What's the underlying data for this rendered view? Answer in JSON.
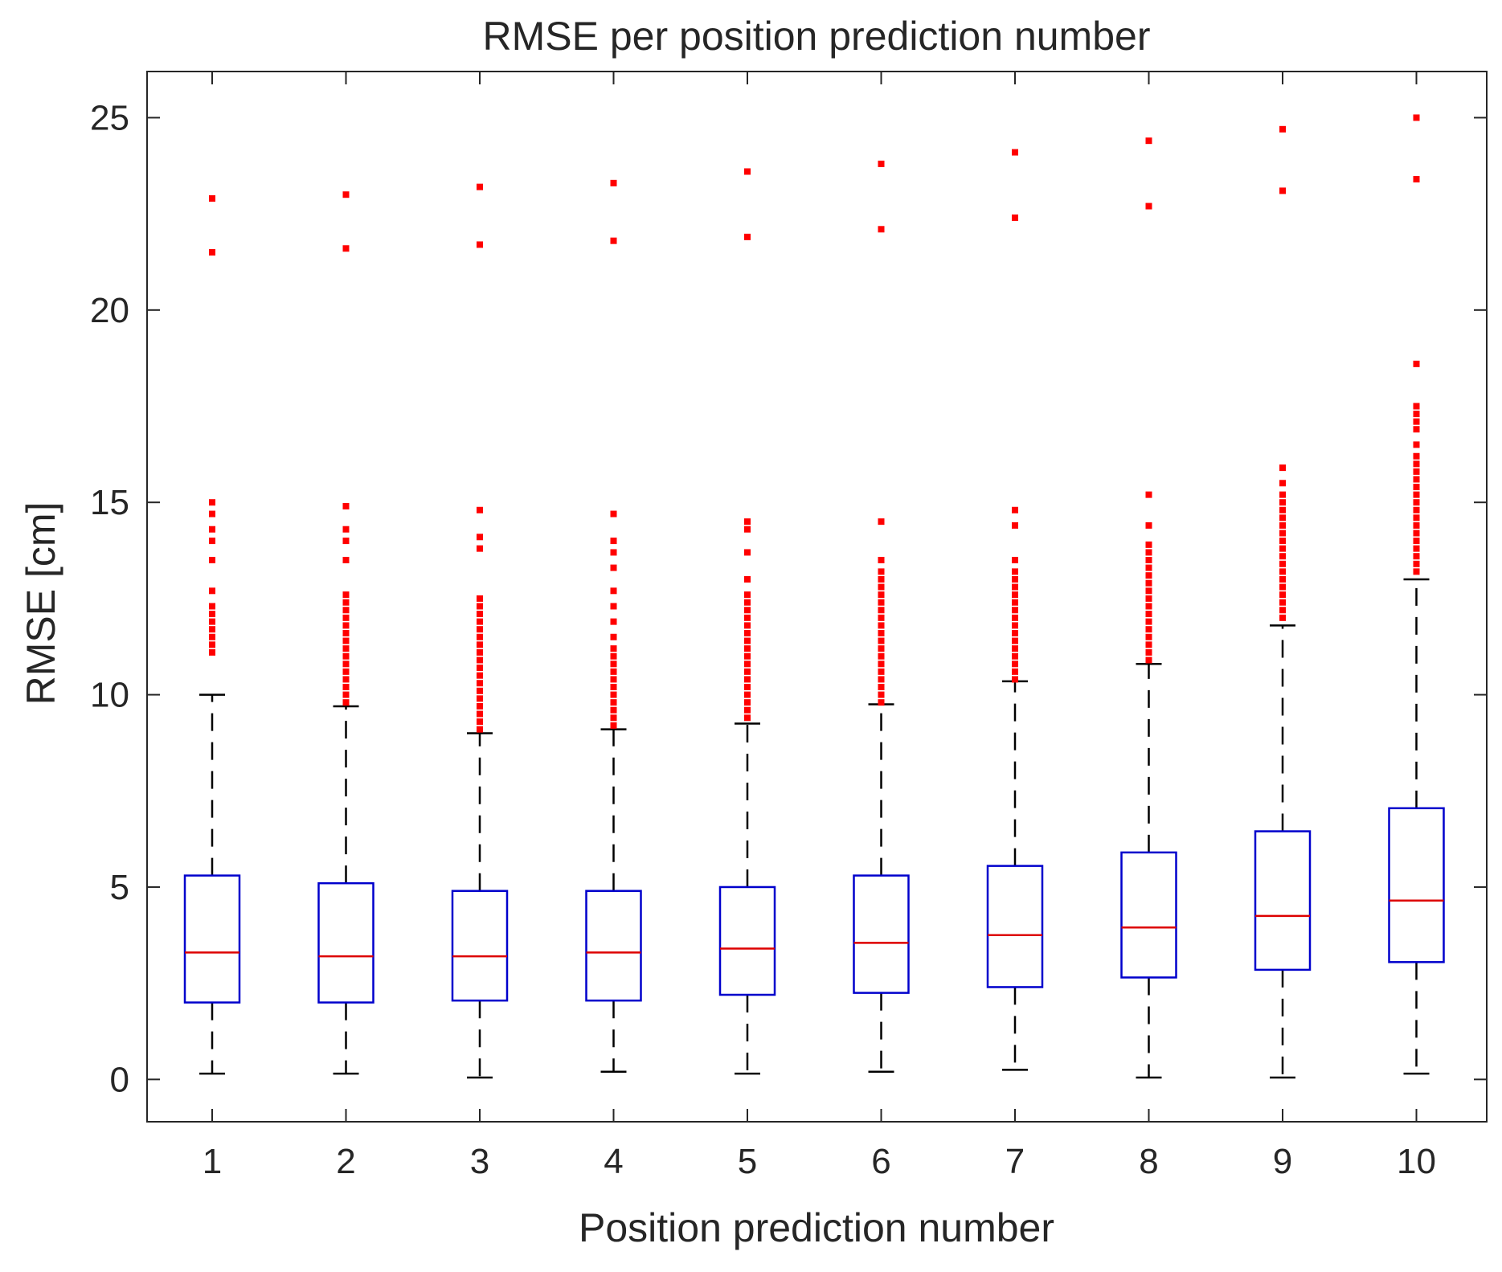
{
  "chart_data": {
    "type": "boxplot",
    "title": "RMSE per position prediction number",
    "xlabel": "Position prediction number",
    "ylabel": "RMSE [cm]",
    "ylim": [
      -1.1,
      26.2
    ],
    "yticks": [
      0,
      5,
      10,
      15,
      20,
      25
    ],
    "ytick_labels": [
      "0",
      "5",
      "10",
      "15",
      "20",
      "25"
    ],
    "categories": [
      "1",
      "2",
      "3",
      "4",
      "5",
      "6",
      "7",
      "8",
      "9",
      "10"
    ],
    "grid": false,
    "colors": {
      "box": "#0000cc",
      "median": "#dd0000",
      "whisker": "#000000",
      "outlier": "#ff0000",
      "axes": "#262626"
    },
    "boxes": [
      {
        "category": "1",
        "whisker_low": 0.15,
        "q1": 2.0,
        "median": 3.3,
        "q3": 5.3,
        "whisker_high": 10.0,
        "outliers": [
          11.1,
          11.3,
          11.5,
          11.7,
          11.9,
          12.1,
          12.3,
          12.7,
          13.5,
          14.0,
          14.3,
          14.7,
          15.0,
          21.5,
          22.9
        ]
      },
      {
        "category": "2",
        "whisker_low": 0.15,
        "q1": 2.0,
        "median": 3.2,
        "q3": 5.1,
        "whisker_high": 9.7,
        "outliers": [
          9.8,
          10.0,
          10.2,
          10.4,
          10.6,
          10.8,
          11.0,
          11.2,
          11.4,
          11.6,
          11.8,
          12.0,
          12.2,
          12.4,
          12.6,
          13.5,
          14.0,
          14.3,
          14.9,
          21.6,
          23.0
        ]
      },
      {
        "category": "3",
        "whisker_low": 0.05,
        "q1": 2.05,
        "median": 3.2,
        "q3": 4.9,
        "whisker_high": 9.0,
        "outliers": [
          9.1,
          9.3,
          9.5,
          9.7,
          9.9,
          10.1,
          10.3,
          10.5,
          10.7,
          10.9,
          11.1,
          11.3,
          11.5,
          11.7,
          11.9,
          12.1,
          12.3,
          12.5,
          13.8,
          14.1,
          14.8,
          21.7,
          23.2
        ]
      },
      {
        "category": "4",
        "whisker_low": 0.2,
        "q1": 2.05,
        "median": 3.3,
        "q3": 4.9,
        "whisker_high": 9.1,
        "outliers": [
          9.2,
          9.4,
          9.6,
          9.8,
          10.0,
          10.2,
          10.4,
          10.6,
          10.8,
          11.0,
          11.2,
          11.5,
          11.9,
          12.3,
          12.7,
          13.3,
          13.7,
          14.0,
          14.7,
          21.8,
          23.3
        ]
      },
      {
        "category": "5",
        "whisker_low": 0.15,
        "q1": 2.2,
        "median": 3.4,
        "q3": 5.0,
        "whisker_high": 9.25,
        "outliers": [
          9.4,
          9.6,
          9.8,
          10.0,
          10.2,
          10.4,
          10.6,
          10.8,
          11.0,
          11.2,
          11.4,
          11.6,
          11.8,
          12.0,
          12.2,
          12.4,
          12.6,
          13.0,
          13.7,
          14.3,
          14.5,
          21.9,
          23.6
        ]
      },
      {
        "category": "6",
        "whisker_low": 0.2,
        "q1": 2.25,
        "median": 3.55,
        "q3": 5.3,
        "whisker_high": 9.75,
        "outliers": [
          9.8,
          10.0,
          10.2,
          10.4,
          10.6,
          10.8,
          11.0,
          11.2,
          11.4,
          11.6,
          11.8,
          12.0,
          12.2,
          12.4,
          12.6,
          12.8,
          13.0,
          13.2,
          13.5,
          14.5,
          22.1,
          23.8
        ]
      },
      {
        "category": "7",
        "whisker_low": 0.25,
        "q1": 2.4,
        "median": 3.75,
        "q3": 5.55,
        "whisker_high": 10.35,
        "outliers": [
          10.4,
          10.6,
          10.8,
          11.0,
          11.2,
          11.4,
          11.6,
          11.8,
          12.0,
          12.2,
          12.4,
          12.6,
          12.8,
          13.0,
          13.2,
          13.5,
          14.4,
          14.8,
          22.4,
          24.1
        ]
      },
      {
        "category": "8",
        "whisker_low": 0.05,
        "q1": 2.65,
        "median": 3.95,
        "q3": 5.9,
        "whisker_high": 10.8,
        "outliers": [
          10.9,
          11.1,
          11.3,
          11.5,
          11.7,
          11.9,
          12.1,
          12.3,
          12.5,
          12.7,
          12.9,
          13.1,
          13.3,
          13.5,
          13.7,
          13.9,
          14.4,
          15.2,
          22.7,
          24.4
        ]
      },
      {
        "category": "9",
        "whisker_low": 0.05,
        "q1": 2.85,
        "median": 4.25,
        "q3": 6.45,
        "whisker_high": 11.8,
        "outliers": [
          12.0,
          12.2,
          12.4,
          12.6,
          12.8,
          13.0,
          13.2,
          13.4,
          13.6,
          13.8,
          14.0,
          14.2,
          14.4,
          14.6,
          14.8,
          15.0,
          15.2,
          15.5,
          15.9,
          23.1,
          24.7
        ]
      },
      {
        "category": "10",
        "whisker_low": 0.15,
        "q1": 3.05,
        "median": 4.65,
        "q3": 7.05,
        "whisker_high": 13.0,
        "outliers": [
          13.2,
          13.4,
          13.6,
          13.8,
          14.0,
          14.2,
          14.4,
          14.6,
          14.8,
          15.0,
          15.2,
          15.4,
          15.6,
          15.8,
          16.0,
          16.2,
          16.5,
          16.9,
          17.1,
          17.3,
          17.5,
          18.6,
          23.4,
          25.0
        ]
      }
    ]
  }
}
